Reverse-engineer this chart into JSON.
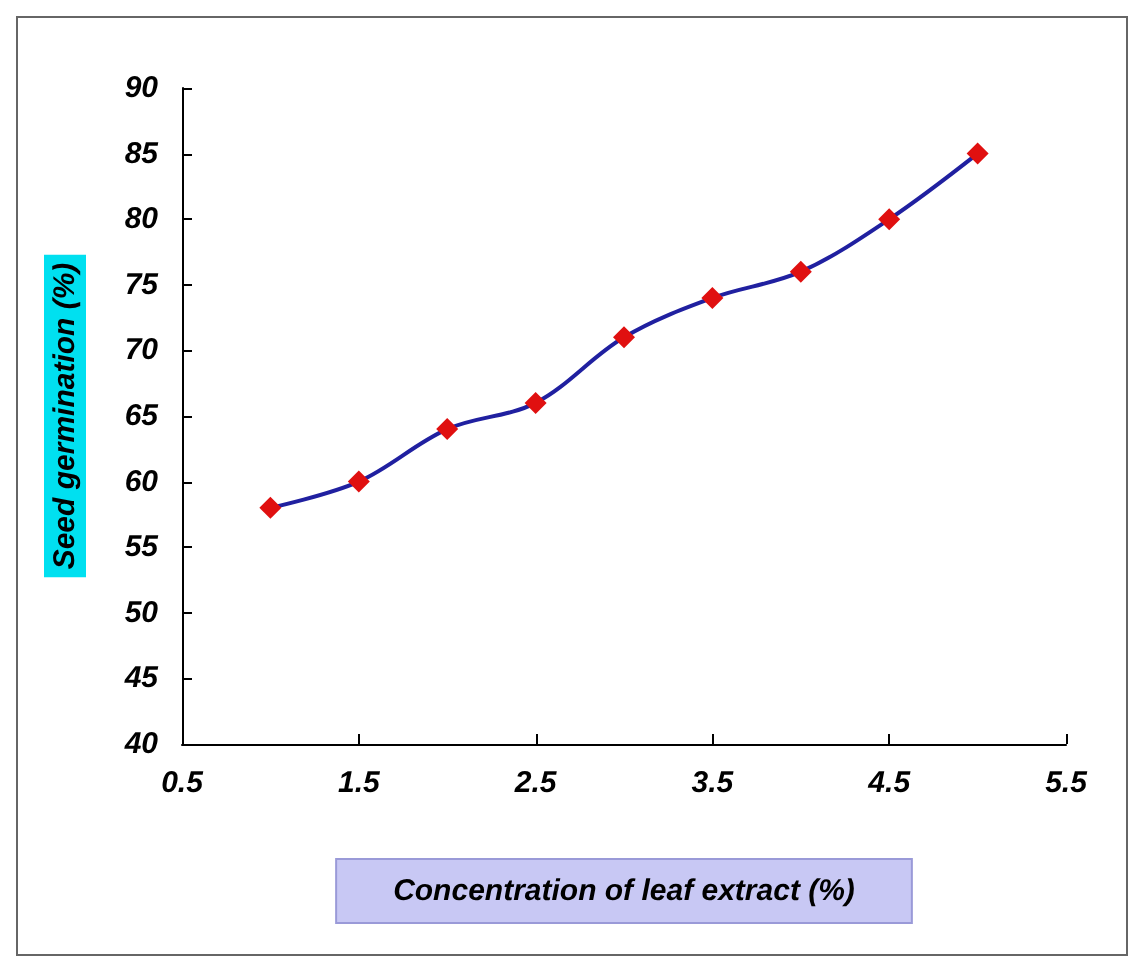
{
  "chart_data": {
    "type": "line",
    "xlabel": "Concentration of leaf extract (%)",
    "ylabel": "Seed germination (%)",
    "x": [
      1,
      1.5,
      2,
      2.5,
      3,
      3.5,
      4,
      4.5,
      5
    ],
    "series": [
      {
        "color": "#2020a0",
        "colors": [
          "#e01010",
          "#e01010",
          "#e01010",
          "#e01010",
          "#e01010",
          "#e01010",
          "#e01010",
          "#e01010",
          "#e01010"
        ],
        "values": [
          58,
          60,
          64,
          66,
          71,
          74,
          76,
          80,
          85
        ]
      }
    ],
    "xlim": [
      0.5,
      5.5
    ],
    "xticks": [
      0.5,
      1.5,
      2.5,
      3.5,
      4.5,
      5.5
    ],
    "ylim": [
      40,
      90
    ],
    "yticks": [
      40,
      45,
      50,
      55,
      60,
      65,
      70,
      75,
      80,
      85,
      90
    ],
    "grid": false,
    "marker": "diamond",
    "line_style": "solid"
  }
}
